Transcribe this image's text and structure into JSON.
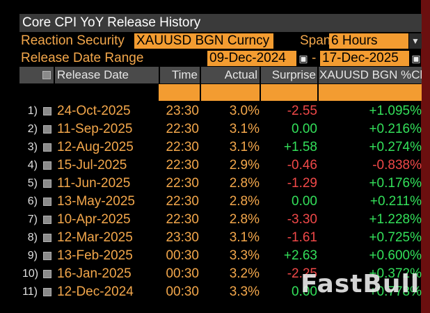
{
  "window": {
    "title": "Core CPI YoY Release History"
  },
  "controls": {
    "reaction_security_label": "Reaction Security",
    "reaction_security_value": "XAUUSD BGN Curncy",
    "span_label": "Span",
    "span_value": "6 Hours",
    "date_range_label": "Release Date Range",
    "date_from": "09-Dec-2024",
    "date_to": "17-Dec-2025",
    "range_separator": "-"
  },
  "table": {
    "headers": [
      "Release Date",
      "Time",
      "Actual",
      "Surprise",
      "XAUUSD BGN %Chg"
    ],
    "rows": [
      {
        "n": "1)",
        "date": "24-Oct-2025",
        "time": "23:30",
        "actual": "3.0%",
        "surprise": "-2.55",
        "chg": "+1.095%",
        "s_sign": "neg",
        "c_sign": "pos"
      },
      {
        "n": "2)",
        "date": "11-Sep-2025",
        "time": "22:30",
        "actual": "3.1%",
        "surprise": "0.00",
        "chg": "+0.216%",
        "s_sign": "neu",
        "c_sign": "pos"
      },
      {
        "n": "3)",
        "date": "12-Aug-2025",
        "time": "22:30",
        "actual": "3.1%",
        "surprise": "+1.58",
        "chg": "+0.274%",
        "s_sign": "pos",
        "c_sign": "pos"
      },
      {
        "n": "4)",
        "date": "15-Jul-2025",
        "time": "22:30",
        "actual": "2.9%",
        "surprise": "-0.46",
        "chg": "-0.838%",
        "s_sign": "neg",
        "c_sign": "neg"
      },
      {
        "n": "5)",
        "date": "11-Jun-2025",
        "time": "22:30",
        "actual": "2.8%",
        "surprise": "-1.29",
        "chg": "+0.176%",
        "s_sign": "neg",
        "c_sign": "pos"
      },
      {
        "n": "6)",
        "date": "13-May-2025",
        "time": "22:30",
        "actual": "2.8%",
        "surprise": "0.00",
        "chg": "+0.211%",
        "s_sign": "neu",
        "c_sign": "pos"
      },
      {
        "n": "7)",
        "date": "10-Apr-2025",
        "time": "22:30",
        "actual": "2.8%",
        "surprise": "-3.30",
        "chg": "+1.228%",
        "s_sign": "neg",
        "c_sign": "pos"
      },
      {
        "n": "8)",
        "date": "12-Mar-2025",
        "time": "23:30",
        "actual": "3.1%",
        "surprise": "-1.61",
        "chg": "+0.725%",
        "s_sign": "neg",
        "c_sign": "pos"
      },
      {
        "n": "9)",
        "date": "13-Feb-2025",
        "time": "00:30",
        "actual": "3.3%",
        "surprise": "+2.63",
        "chg": "+0.600%",
        "s_sign": "pos",
        "c_sign": "pos"
      },
      {
        "n": "10)",
        "date": "16-Jan-2025",
        "time": "00:30",
        "actual": "3.2%",
        "surprise": "-2.25",
        "chg": "+0.372%",
        "s_sign": "neg",
        "c_sign": "pos"
      },
      {
        "n": "11)",
        "date": "12-Dec-2024",
        "time": "00:30",
        "actual": "3.3%",
        "surprise": "0.00",
        "chg": "+0.778%",
        "s_sign": "neu",
        "c_sign": "pos"
      }
    ]
  },
  "watermark": "FastBull",
  "colors": {
    "accent": "#f39c31",
    "positive": "#33e05a",
    "negative": "#f04848",
    "header_bg": "#4a4a4a"
  }
}
